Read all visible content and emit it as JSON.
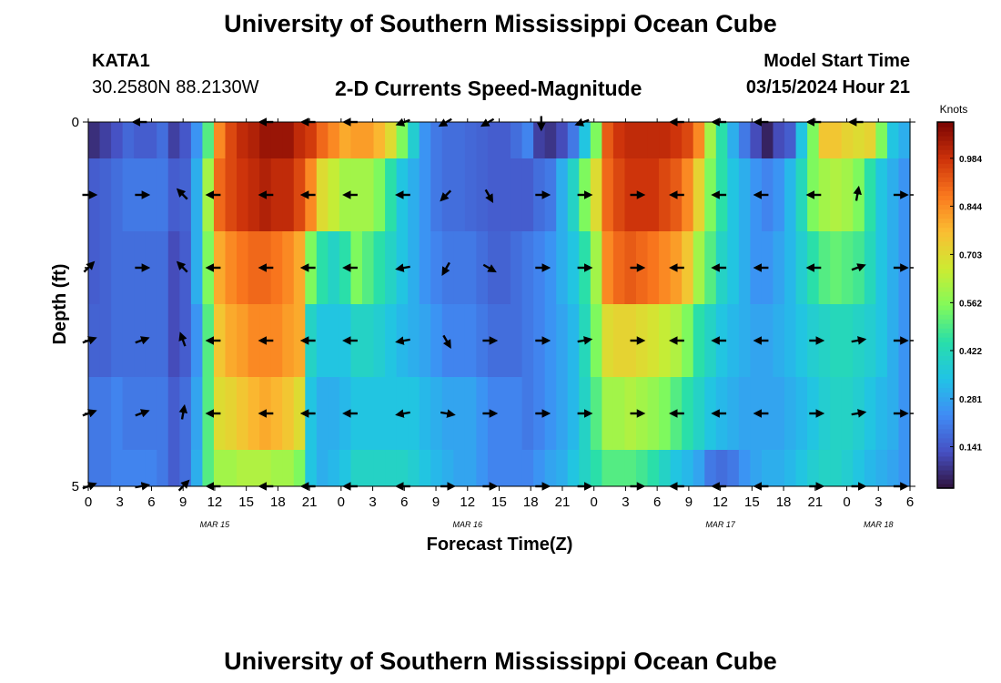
{
  "header": {
    "title": "University of Southern Mississippi Ocean Cube",
    "station": "KATA1",
    "coords": "30.2580N  88.2130W",
    "subtitle": "2-D Currents Speed-Magnitude",
    "model_label": "Model Start Time",
    "model_time": "03/15/2024 Hour 21"
  },
  "footer": {
    "title": "University of Southern Mississippi Ocean Cube"
  },
  "chart_data": {
    "type": "heatmap",
    "title": "2-D Currents Speed-Magnitude",
    "xlabel": "Forecast Time(Z)",
    "ylabel": "Depth (ft)",
    "x_range_hours": [
      0,
      78
    ],
    "y_range": [
      0,
      5
    ],
    "y_tick_labels": [
      {
        "v": 0,
        "label": "0"
      },
      {
        "v": 5,
        "label": "5"
      }
    ],
    "y_minor_ticks": [
      1,
      2,
      3,
      4
    ],
    "x_ticks": [
      {
        "h": 0,
        "label": "0"
      },
      {
        "h": 3,
        "label": "3"
      },
      {
        "h": 6,
        "label": "6"
      },
      {
        "h": 9,
        "label": "9"
      },
      {
        "h": 12,
        "label": "12"
      },
      {
        "h": 15,
        "label": "15"
      },
      {
        "h": 18,
        "label": "18"
      },
      {
        "h": 21,
        "label": "21"
      },
      {
        "h": 24,
        "label": "0"
      },
      {
        "h": 27,
        "label": "3"
      },
      {
        "h": 30,
        "label": "6"
      },
      {
        "h": 33,
        "label": "9"
      },
      {
        "h": 36,
        "label": "12"
      },
      {
        "h": 39,
        "label": "15"
      },
      {
        "h": 42,
        "label": "18"
      },
      {
        "h": 45,
        "label": "21"
      },
      {
        "h": 48,
        "label": "0"
      },
      {
        "h": 51,
        "label": "3"
      },
      {
        "h": 54,
        "label": "6"
      },
      {
        "h": 57,
        "label": "9"
      },
      {
        "h": 60,
        "label": "12"
      },
      {
        "h": 63,
        "label": "15"
      },
      {
        "h": 66,
        "label": "18"
      },
      {
        "h": 69,
        "label": "21"
      },
      {
        "h": 72,
        "label": "0"
      },
      {
        "h": 75,
        "label": "3"
      },
      {
        "h": 78,
        "label": "6"
      }
    ],
    "date_labels": [
      {
        "h": 12,
        "label": "MAR 15"
      },
      {
        "h": 36,
        "label": "MAR 16"
      },
      {
        "h": 60,
        "label": "MAR 17"
      },
      {
        "h": 75,
        "label": "MAR 18"
      }
    ],
    "colorbar": {
      "unit": "Knots",
      "range": [
        0.02,
        1.09
      ],
      "ticks": [
        0.141,
        0.281,
        0.422,
        0.562,
        0.703,
        0.844,
        0.984
      ],
      "tick_labels": [
        "0.141",
        "0.281",
        "0.422",
        "0.562",
        "0.703",
        "0.844",
        "0.984"
      ]
    },
    "depth_rows": [
      {
        "d0": 0,
        "d1": 0.5,
        "speeds": [
          0.07,
          0.1,
          0.13,
          0.17,
          0.15,
          0.15,
          0.18,
          0.1,
          0.14,
          0.25,
          0.5,
          0.85,
          0.95,
          1.0,
          1.02,
          1.05,
          1.05,
          1.05,
          1.0,
          0.97,
          0.9,
          0.85,
          0.8,
          0.82,
          0.82,
          0.78,
          0.7,
          0.55,
          0.38,
          0.25,
          0.2,
          0.18,
          0.18,
          0.17,
          0.16,
          0.15,
          0.15,
          0.18,
          0.22,
          0.1,
          0.08,
          0.12,
          0.2,
          0.35,
          0.55,
          0.92,
          0.98,
          1.0,
          1.0,
          1.0,
          1.0,
          0.98,
          0.95,
          0.85,
          0.6,
          0.45,
          0.3,
          0.2,
          0.12,
          0.05,
          0.12,
          0.15,
          0.35,
          0.55,
          0.75,
          0.75,
          0.72,
          0.7,
          0.72,
          0.55,
          0.35,
          0.3
        ]
      },
      {
        "d0": 0.5,
        "d1": 1.5,
        "speeds": [
          0.15,
          0.16,
          0.18,
          0.2,
          0.2,
          0.2,
          0.2,
          0.15,
          0.16,
          0.3,
          0.6,
          0.9,
          0.95,
          0.98,
          1.0,
          1.02,
          1.0,
          1.0,
          0.95,
          0.85,
          0.7,
          0.65,
          0.6,
          0.6,
          0.6,
          0.55,
          0.45,
          0.35,
          0.3,
          0.25,
          0.2,
          0.18,
          0.18,
          0.17,
          0.16,
          0.15,
          0.15,
          0.15,
          0.15,
          0.18,
          0.2,
          0.3,
          0.4,
          0.55,
          0.7,
          0.9,
          0.95,
          0.98,
          0.98,
          0.98,
          0.95,
          0.92,
          0.85,
          0.72,
          0.55,
          0.45,
          0.35,
          0.3,
          0.25,
          0.22,
          0.25,
          0.32,
          0.42,
          0.55,
          0.6,
          0.62,
          0.6,
          0.55,
          0.45,
          0.35,
          0.3,
          0.25
        ]
      },
      {
        "d0": 1.5,
        "d1": 2.5,
        "speeds": [
          0.15,
          0.16,
          0.18,
          0.18,
          0.18,
          0.18,
          0.18,
          0.12,
          0.15,
          0.3,
          0.55,
          0.8,
          0.85,
          0.88,
          0.9,
          0.9,
          0.88,
          0.85,
          0.8,
          0.55,
          0.45,
          0.4,
          0.45,
          0.55,
          0.5,
          0.45,
          0.4,
          0.35,
          0.3,
          0.25,
          0.22,
          0.2,
          0.2,
          0.2,
          0.18,
          0.16,
          0.16,
          0.18,
          0.2,
          0.22,
          0.25,
          0.3,
          0.35,
          0.45,
          0.6,
          0.85,
          0.9,
          0.92,
          0.9,
          0.88,
          0.85,
          0.82,
          0.75,
          0.6,
          0.5,
          0.4,
          0.35,
          0.3,
          0.25,
          0.25,
          0.28,
          0.32,
          0.38,
          0.45,
          0.5,
          0.52,
          0.5,
          0.48,
          0.42,
          0.35,
          0.3,
          0.25
        ]
      },
      {
        "d0": 2.5,
        "d1": 3.5,
        "speeds": [
          0.16,
          0.16,
          0.18,
          0.18,
          0.18,
          0.18,
          0.18,
          0.12,
          0.15,
          0.25,
          0.5,
          0.75,
          0.8,
          0.82,
          0.85,
          0.85,
          0.85,
          0.82,
          0.8,
          0.4,
          0.35,
          0.35,
          0.35,
          0.4,
          0.4,
          0.38,
          0.35,
          0.32,
          0.3,
          0.28,
          0.25,
          0.22,
          0.22,
          0.22,
          0.2,
          0.18,
          0.18,
          0.18,
          0.2,
          0.22,
          0.25,
          0.28,
          0.32,
          0.42,
          0.55,
          0.7,
          0.72,
          0.72,
          0.7,
          0.68,
          0.65,
          0.62,
          0.55,
          0.45,
          0.4,
          0.35,
          0.32,
          0.3,
          0.28,
          0.28,
          0.3,
          0.32,
          0.35,
          0.38,
          0.4,
          0.42,
          0.42,
          0.4,
          0.38,
          0.35,
          0.3,
          0.25
        ]
      },
      {
        "d0": 3.5,
        "d1": 4.5,
        "speeds": [
          0.2,
          0.2,
          0.22,
          0.2,
          0.2,
          0.2,
          0.2,
          0.15,
          0.18,
          0.28,
          0.5,
          0.7,
          0.72,
          0.75,
          0.78,
          0.8,
          0.78,
          0.75,
          0.7,
          0.35,
          0.3,
          0.3,
          0.32,
          0.35,
          0.35,
          0.35,
          0.35,
          0.35,
          0.35,
          0.32,
          0.3,
          0.28,
          0.28,
          0.28,
          0.25,
          0.22,
          0.22,
          0.22,
          0.2,
          0.22,
          0.25,
          0.28,
          0.32,
          0.4,
          0.5,
          0.6,
          0.6,
          0.62,
          0.6,
          0.58,
          0.55,
          0.5,
          0.45,
          0.4,
          0.35,
          0.32,
          0.3,
          0.28,
          0.28,
          0.28,
          0.28,
          0.3,
          0.32,
          0.35,
          0.38,
          0.4,
          0.4,
          0.38,
          0.35,
          0.32,
          0.3,
          0.25
        ]
      },
      {
        "d0": 4.5,
        "d1": 5,
        "speeds": [
          0.2,
          0.2,
          0.22,
          0.22,
          0.22,
          0.22,
          0.2,
          0.15,
          0.18,
          0.3,
          0.5,
          0.6,
          0.6,
          0.62,
          0.62,
          0.62,
          0.6,
          0.6,
          0.55,
          0.35,
          0.3,
          0.32,
          0.35,
          0.4,
          0.4,
          0.4,
          0.4,
          0.4,
          0.38,
          0.35,
          0.32,
          0.3,
          0.28,
          0.28,
          0.25,
          0.22,
          0.22,
          0.22,
          0.22,
          0.25,
          0.28,
          0.3,
          0.35,
          0.4,
          0.45,
          0.5,
          0.5,
          0.5,
          0.48,
          0.45,
          0.4,
          0.35,
          0.32,
          0.28,
          0.2,
          0.18,
          0.2,
          0.25,
          0.28,
          0.3,
          0.3,
          0.32,
          0.35,
          0.38,
          0.4,
          0.4,
          0.38,
          0.35,
          0.32,
          0.3,
          0.28,
          0.25
        ]
      }
    ],
    "arrow_hours": [
      0,
      5,
      9,
      12,
      17,
      21,
      25,
      30,
      34,
      38,
      43,
      47,
      52,
      56,
      60,
      64,
      69,
      73,
      77
    ],
    "arrow_rows": [
      {
        "depth": 0,
        "angles": [
          null,
          180,
          null,
          null,
          180,
          180,
          180,
          200,
          210,
          210,
          270,
          200,
          null,
          180,
          180,
          180,
          180,
          180,
          null
        ]
      },
      {
        "depth": 1,
        "angles": [
          0,
          0,
          135,
          180,
          180,
          180,
          180,
          180,
          225,
          300,
          0,
          0,
          0,
          180,
          180,
          180,
          180,
          80,
          0
        ]
      },
      {
        "depth": 2,
        "angles": [
          45,
          0,
          135,
          180,
          180,
          180,
          180,
          190,
          240,
          330,
          0,
          0,
          0,
          180,
          180,
          180,
          180,
          20,
          0
        ]
      },
      {
        "depth": 3,
        "angles": [
          20,
          20,
          110,
          180,
          180,
          180,
          180,
          190,
          300,
          0,
          0,
          10,
          0,
          180,
          180,
          180,
          0,
          10,
          0
        ]
      },
      {
        "depth": 4,
        "angles": [
          20,
          20,
          80,
          180,
          180,
          180,
          180,
          190,
          350,
          0,
          0,
          0,
          0,
          180,
          180,
          180,
          0,
          10,
          0
        ]
      },
      {
        "depth": 5,
        "angles": [
          20,
          10,
          45,
          180,
          180,
          180,
          180,
          180,
          0,
          0,
          0,
          0,
          0,
          180,
          180,
          180,
          0,
          0,
          0
        ]
      }
    ]
  }
}
